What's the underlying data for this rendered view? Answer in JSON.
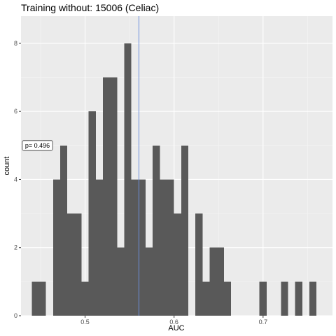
{
  "chart_data": {
    "type": "bar",
    "title": "Training without: 15006 (Celiac)",
    "xlabel": "AUC",
    "ylabel": "count",
    "xlim": [
      0.428,
      0.778
    ],
    "ylim": [
      0,
      8.8
    ],
    "x_ticks": [
      0.5,
      0.6,
      0.7
    ],
    "x_tick_labels": [
      "0.5",
      "0.6",
      "0.7"
    ],
    "y_ticks": [
      0,
      2,
      4,
      6,
      8
    ],
    "y_tick_labels": [
      "0",
      "2",
      "4",
      "6",
      "8"
    ],
    "grid": true,
    "bin_width": 0.008,
    "bins": [
      {
        "x": 0.444,
        "count": 1
      },
      {
        "x": 0.452,
        "count": 1
      },
      {
        "x": 0.468,
        "count": 4
      },
      {
        "x": 0.476,
        "count": 5
      },
      {
        "x": 0.484,
        "count": 3
      },
      {
        "x": 0.492,
        "count": 3
      },
      {
        "x": 0.5,
        "count": 1
      },
      {
        "x": 0.508,
        "count": 6
      },
      {
        "x": 0.516,
        "count": 4
      },
      {
        "x": 0.524,
        "count": 7
      },
      {
        "x": 0.532,
        "count": 7
      },
      {
        "x": 0.54,
        "count": 2
      },
      {
        "x": 0.548,
        "count": 8
      },
      {
        "x": 0.556,
        "count": 4
      },
      {
        "x": 0.564,
        "count": 4
      },
      {
        "x": 0.572,
        "count": 2
      },
      {
        "x": 0.58,
        "count": 5
      },
      {
        "x": 0.588,
        "count": 4
      },
      {
        "x": 0.596,
        "count": 4
      },
      {
        "x": 0.604,
        "count": 3
      },
      {
        "x": 0.612,
        "count": 5
      },
      {
        "x": 0.628,
        "count": 3
      },
      {
        "x": 0.636,
        "count": 1
      },
      {
        "x": 0.644,
        "count": 2
      },
      {
        "x": 0.652,
        "count": 2
      },
      {
        "x": 0.66,
        "count": 1
      },
      {
        "x": 0.7,
        "count": 1
      },
      {
        "x": 0.724,
        "count": 1
      },
      {
        "x": 0.74,
        "count": 1
      },
      {
        "x": 0.756,
        "count": 1
      }
    ],
    "reference_line": {
      "x": 0.5605,
      "color": "#6c8ede"
    },
    "annotation": {
      "text": "p= 0.496",
      "x": 0.4465,
      "y": 5.0
    },
    "colors": {
      "bar": "#595959",
      "panel_bg": "#ebebeb",
      "grid_major": "#ffffff",
      "reference_line": "#6c8ede"
    }
  }
}
